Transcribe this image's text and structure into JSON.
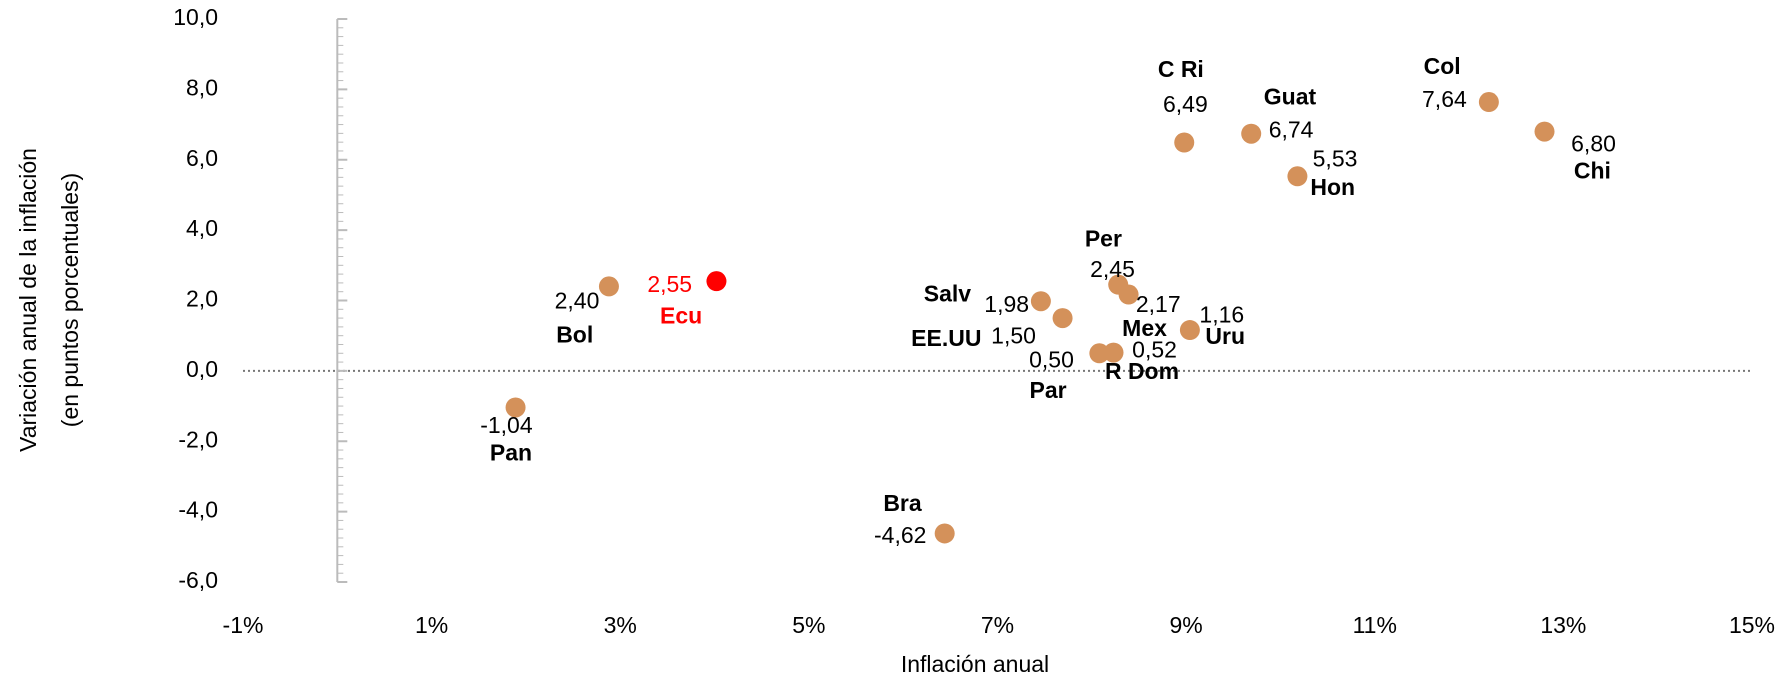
{
  "chart_data": {
    "type": "scatter",
    "x_label": "Inflación anual",
    "y_label": [
      "Variación anual de la inflación",
      "(en puntos porcentuales)"
    ],
    "labels": [
      "Pan",
      "Bol",
      "Ecu",
      "Bra",
      "Salv",
      "EE.UU",
      "Per",
      "Mex",
      "Par",
      "R Dom",
      "Uru",
      "C Ri",
      "Guat",
      "Hon",
      "Col",
      "Chi"
    ],
    "x": [
      1.89,
      2.88,
      4.02,
      6.44,
      7.46,
      7.69,
      8.28,
      8.39,
      8.08,
      8.23,
      9.04,
      8.98,
      9.69,
      10.18,
      12.21,
      12.8
    ],
    "values": [
      -1.04,
      2.4,
      2.55,
      -4.62,
      1.98,
      1.5,
      2.45,
      2.17,
      0.5,
      0.52,
      1.16,
      6.49,
      6.74,
      5.53,
      7.64,
      6.8
    ],
    "value_labels": [
      "-1,04",
      "2,40",
      "2,55",
      "-4,62",
      "1,98",
      "1,50",
      "2,45",
      "2,17",
      "0,50",
      "0,52",
      "1,16",
      "6,49",
      "6,74",
      "5,53",
      "7,64",
      "6,80"
    ],
    "colors": [
      "#d4915a",
      "#d4915a",
      "#ff0000",
      "#d4915a",
      "#d4915a",
      "#d4915a",
      "#d4915a",
      "#d4915a",
      "#d4915a",
      "#d4915a",
      "#d4915a",
      "#d4915a",
      "#d4915a",
      "#d4915a",
      "#d4915a",
      "#d4915a"
    ],
    "xlim": [
      -1,
      15
    ],
    "xticks": [
      {
        "value": -1,
        "label": "-1%"
      },
      {
        "value": 1,
        "label": "1%"
      },
      {
        "value": 3,
        "label": "3%"
      },
      {
        "value": 5,
        "label": "5%"
      },
      {
        "value": 7,
        "label": "7%"
      },
      {
        "value": 9,
        "label": "9%"
      },
      {
        "value": 11,
        "label": "11%"
      },
      {
        "value": 13,
        "label": "13%"
      },
      {
        "value": 15,
        "label": "15%"
      }
    ],
    "ylim": [
      -6,
      10
    ],
    "yticks": [
      {
        "value": -6,
        "label": "-6,0"
      },
      {
        "value": -4,
        "label": "-4,0"
      },
      {
        "value": -2,
        "label": "-2,0"
      },
      {
        "value": 0,
        "label": "0,0"
      },
      {
        "value": 2,
        "label": "2,0"
      },
      {
        "value": 4,
        "label": "4,0"
      },
      {
        "value": 6,
        "label": "6,0"
      },
      {
        "value": 8,
        "label": "8,0"
      },
      {
        "value": 10,
        "label": "10,0"
      }
    ]
  }
}
